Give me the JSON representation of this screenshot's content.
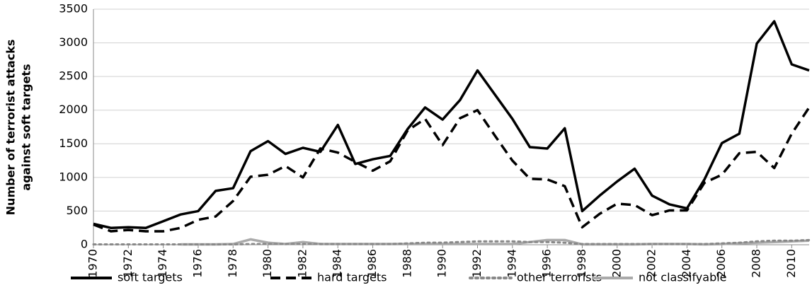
{
  "chart_data": {
    "type": "line",
    "y_label": [
      "Number of terrorist attacks",
      "against soft targets"
    ],
    "x": [
      1970,
      1971,
      1972,
      1973,
      1974,
      1975,
      1976,
      1977,
      1978,
      1979,
      1980,
      1981,
      1982,
      1983,
      1984,
      1985,
      1986,
      1987,
      1988,
      1989,
      1990,
      1991,
      1992,
      1993,
      1994,
      1995,
      1996,
      1997,
      1998,
      1999,
      2000,
      2001,
      2002,
      2003,
      2004,
      2005,
      2006,
      2007,
      2008,
      2009,
      2010,
      2011
    ],
    "xlim": [
      1970,
      2011
    ],
    "xticks": [
      1970,
      1972,
      1974,
      1976,
      1978,
      1980,
      1982,
      1984,
      1986,
      1988,
      1990,
      1992,
      1994,
      1996,
      1998,
      2000,
      2002,
      2004,
      2006,
      2008,
      2010
    ],
    "ylim": [
      0,
      3500
    ],
    "yticks": [
      0,
      500,
      1000,
      1500,
      2000,
      2500,
      3000,
      3500
    ],
    "grid": true,
    "legend": "bottom",
    "series": [
      {
        "name": "soft targets",
        "color": "#000000",
        "style": "solid",
        "values": [
          310,
          250,
          260,
          250,
          350,
          450,
          500,
          800,
          840,
          1390,
          1540,
          1350,
          1440,
          1380,
          1780,
          1200,
          1270,
          1320,
          1720,
          2040,
          1860,
          2150,
          2590,
          2230,
          1870,
          1450,
          1430,
          1730,
          500,
          730,
          940,
          1130,
          730,
          600,
          540,
          970,
          1510,
          1650,
          2990,
          3320,
          2680,
          2590
        ]
      },
      {
        "name": "hard targets",
        "color": "#000000",
        "style": "dashed",
        "values": [
          300,
          200,
          220,
          200,
          200,
          250,
          370,
          420,
          650,
          1010,
          1040,
          1170,
          1000,
          1430,
          1370,
          1230,
          1100,
          1240,
          1700,
          1870,
          1480,
          1880,
          2000,
          1620,
          1250,
          980,
          970,
          870,
          260,
          460,
          610,
          590,
          440,
          510,
          510,
          920,
          1040,
          1360,
          1380,
          1140,
          1650,
          2040
        ]
      },
      {
        "name": "other terrorists",
        "color": "#888888",
        "style": "dotted",
        "values": [
          5,
          5,
          5,
          5,
          5,
          5,
          5,
          5,
          5,
          10,
          10,
          10,
          10,
          10,
          10,
          10,
          10,
          10,
          20,
          30,
          30,
          40,
          50,
          50,
          50,
          40,
          40,
          30,
          10,
          10,
          10,
          10,
          10,
          10,
          10,
          10,
          20,
          30,
          50,
          60,
          60,
          70
        ]
      },
      {
        "name": "not classifyable",
        "color": "#aaaaaa",
        "style": "solid",
        "values": [
          null,
          null,
          null,
          null,
          null,
          5,
          5,
          5,
          10,
          80,
          30,
          10,
          40,
          10,
          10,
          10,
          10,
          10,
          10,
          10,
          10,
          10,
          10,
          10,
          10,
          40,
          70,
          70,
          5,
          5,
          5,
          5,
          10,
          10,
          10,
          5,
          10,
          20,
          30,
          40,
          50,
          60
        ]
      }
    ]
  }
}
